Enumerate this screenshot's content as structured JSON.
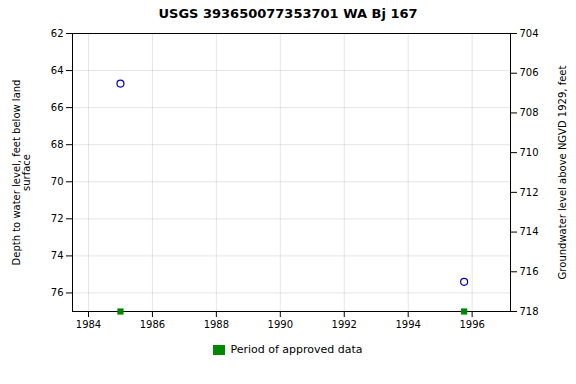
{
  "chart_data": {
    "type": "scatter",
    "title": "USGS 393650077353701 WA Bj 167",
    "ylabel": "Depth to water level, feet below land\nsurface",
    "y2label": "Groundwater level above NGVD 1929, feet",
    "xlim": [
      1983.5,
      1997.2
    ],
    "xticks": [
      1984,
      1986,
      1988,
      1990,
      1992,
      1994,
      1996
    ],
    "ylim": [
      77,
      62
    ],
    "yticks": [
      62,
      64,
      66,
      68,
      70,
      72,
      74,
      76
    ],
    "y2lim": [
      718,
      704
    ],
    "y2ticks": [
      718,
      716,
      714,
      712,
      710,
      708,
      706,
      704
    ],
    "grid": true,
    "legend": "bottom",
    "series": [
      {
        "x": [
          1985.0,
          1995.75
        ],
        "values": [
          64.7,
          75.4
        ],
        "color": "#0000cc",
        "marker": "circle"
      },
      {
        "name": "Period of approved data",
        "x": [
          1985.0,
          1995.75
        ],
        "values": [
          77,
          77
        ],
        "color": "#008800",
        "marker": "square"
      }
    ]
  }
}
